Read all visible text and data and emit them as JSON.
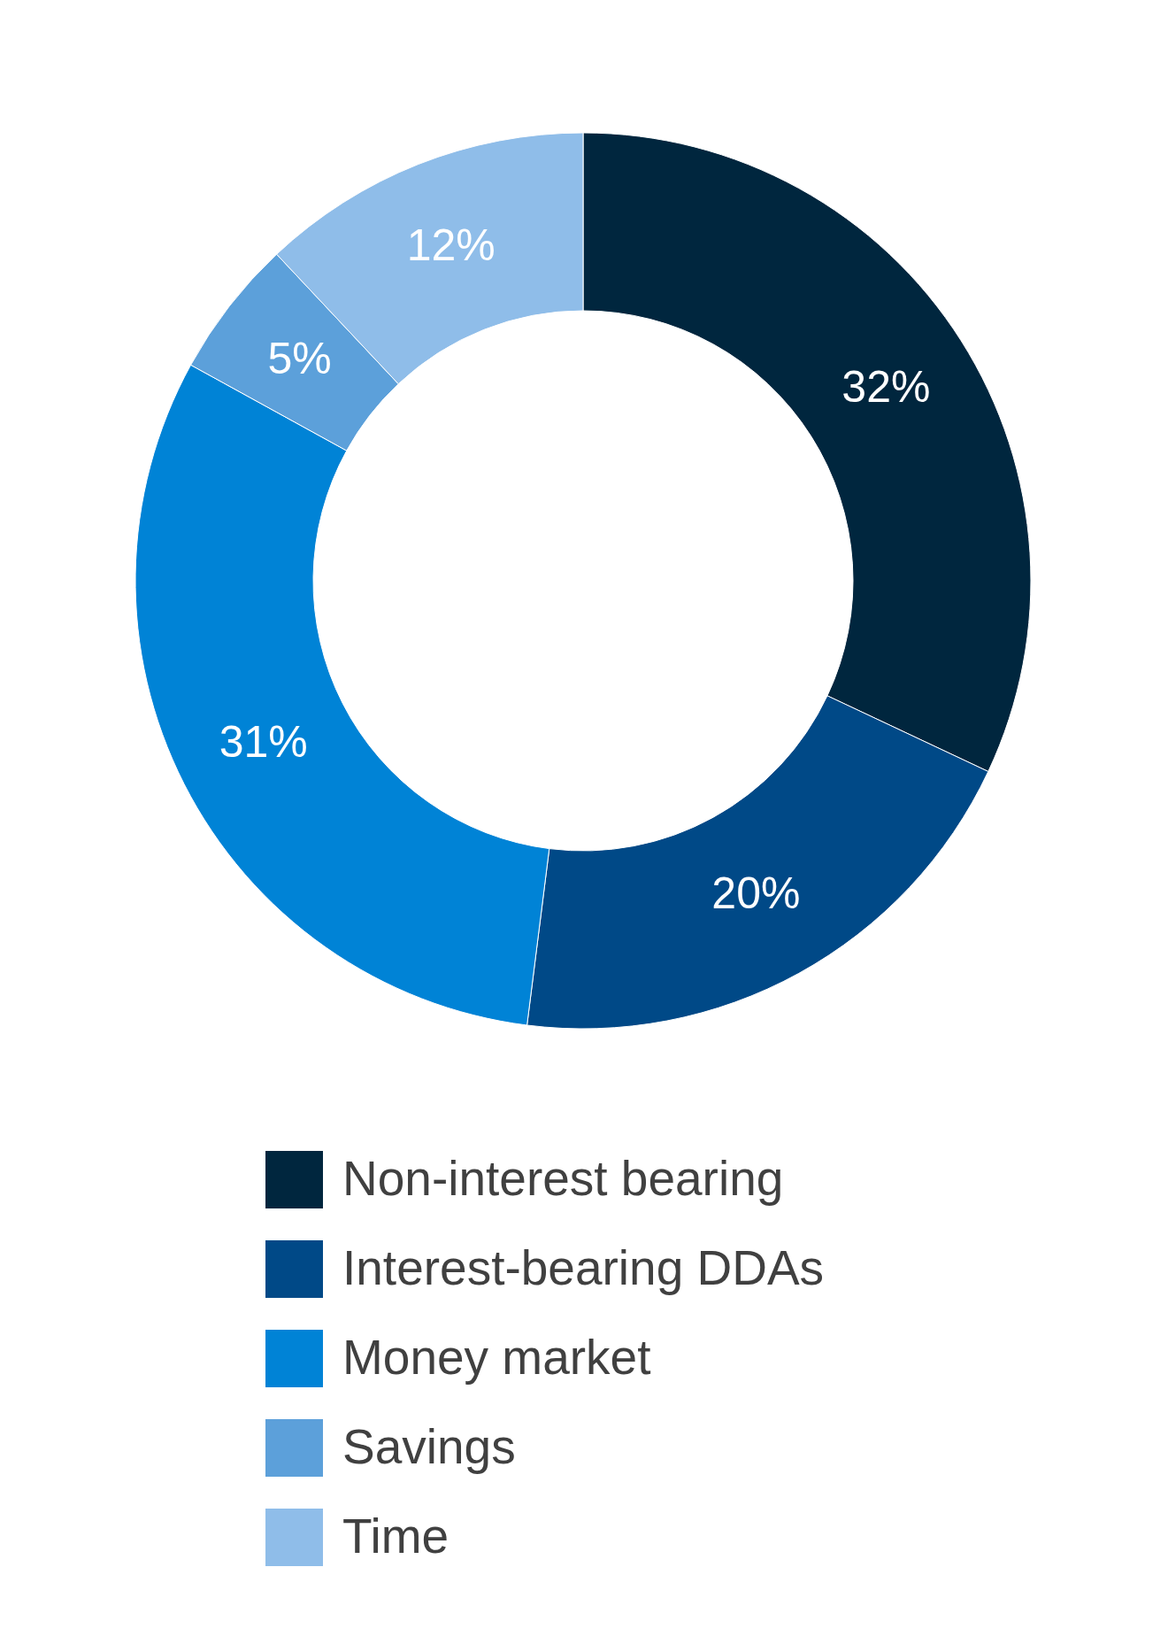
{
  "chart_data": {
    "type": "donut",
    "categories": [
      "Non-interest bearing",
      "Interest-bearing DDAs",
      "Money market",
      "Savings",
      "Time"
    ],
    "values": [
      32,
      20,
      31,
      5,
      12
    ],
    "value_labels": [
      "32%",
      "20%",
      "31%",
      "5%",
      "12%"
    ],
    "colors": [
      "#00263e",
      "#004987",
      "#0083d6",
      "#5ca0da",
      "#8fbde9"
    ],
    "legend": "bottom"
  }
}
